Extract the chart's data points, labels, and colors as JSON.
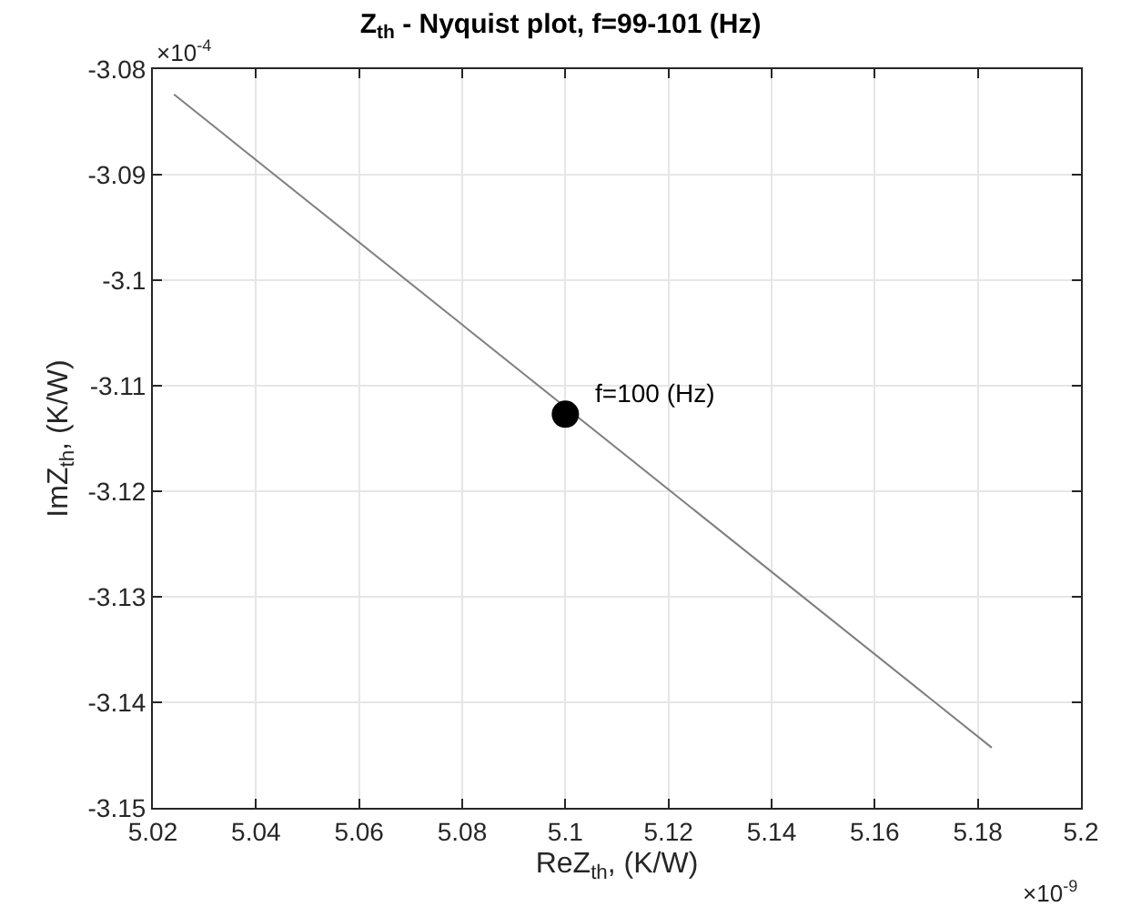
{
  "chart_data": {
    "type": "line",
    "title": "Z$_{th}$ - Nyquist plot, f=99-101 (Hz)",
    "xlabel": "ReZ$_{th}$, (K/W)",
    "ylabel": "ImZ$_{th}$, (K/W)",
    "series": [
      {
        "color": "#7f7f7f",
        "marker": "none",
        "x": [
          5.0241,
          5.1827
        ],
        "values": [
          -3.0824,
          -3.1443
        ]
      },
      {
        "type": "scatter",
        "color": "#000000",
        "marker": "circle",
        "x": [
          5.1
        ],
        "values": [
          -3.1127
        ]
      }
    ],
    "xlim": [
      5.02,
      5.2
    ],
    "xticks": [
      5.02,
      5.04,
      5.06,
      5.08,
      5.1,
      5.12,
      5.14,
      5.16,
      5.18,
      5.2
    ],
    "ylim": [
      -3.15,
      -3.08
    ],
    "yticks": [
      -3.15,
      -3.14,
      -3.13,
      -3.12,
      -3.11,
      -3.1,
      -3.09,
      -3.08
    ],
    "grid": true,
    "annotations": [
      {
        "text": "f=100 (Hz)",
        "x": 5.1,
        "y": -3.1127
      },
      "×10$^{-4}$",
      "×10$^{-9}$"
    ]
  }
}
